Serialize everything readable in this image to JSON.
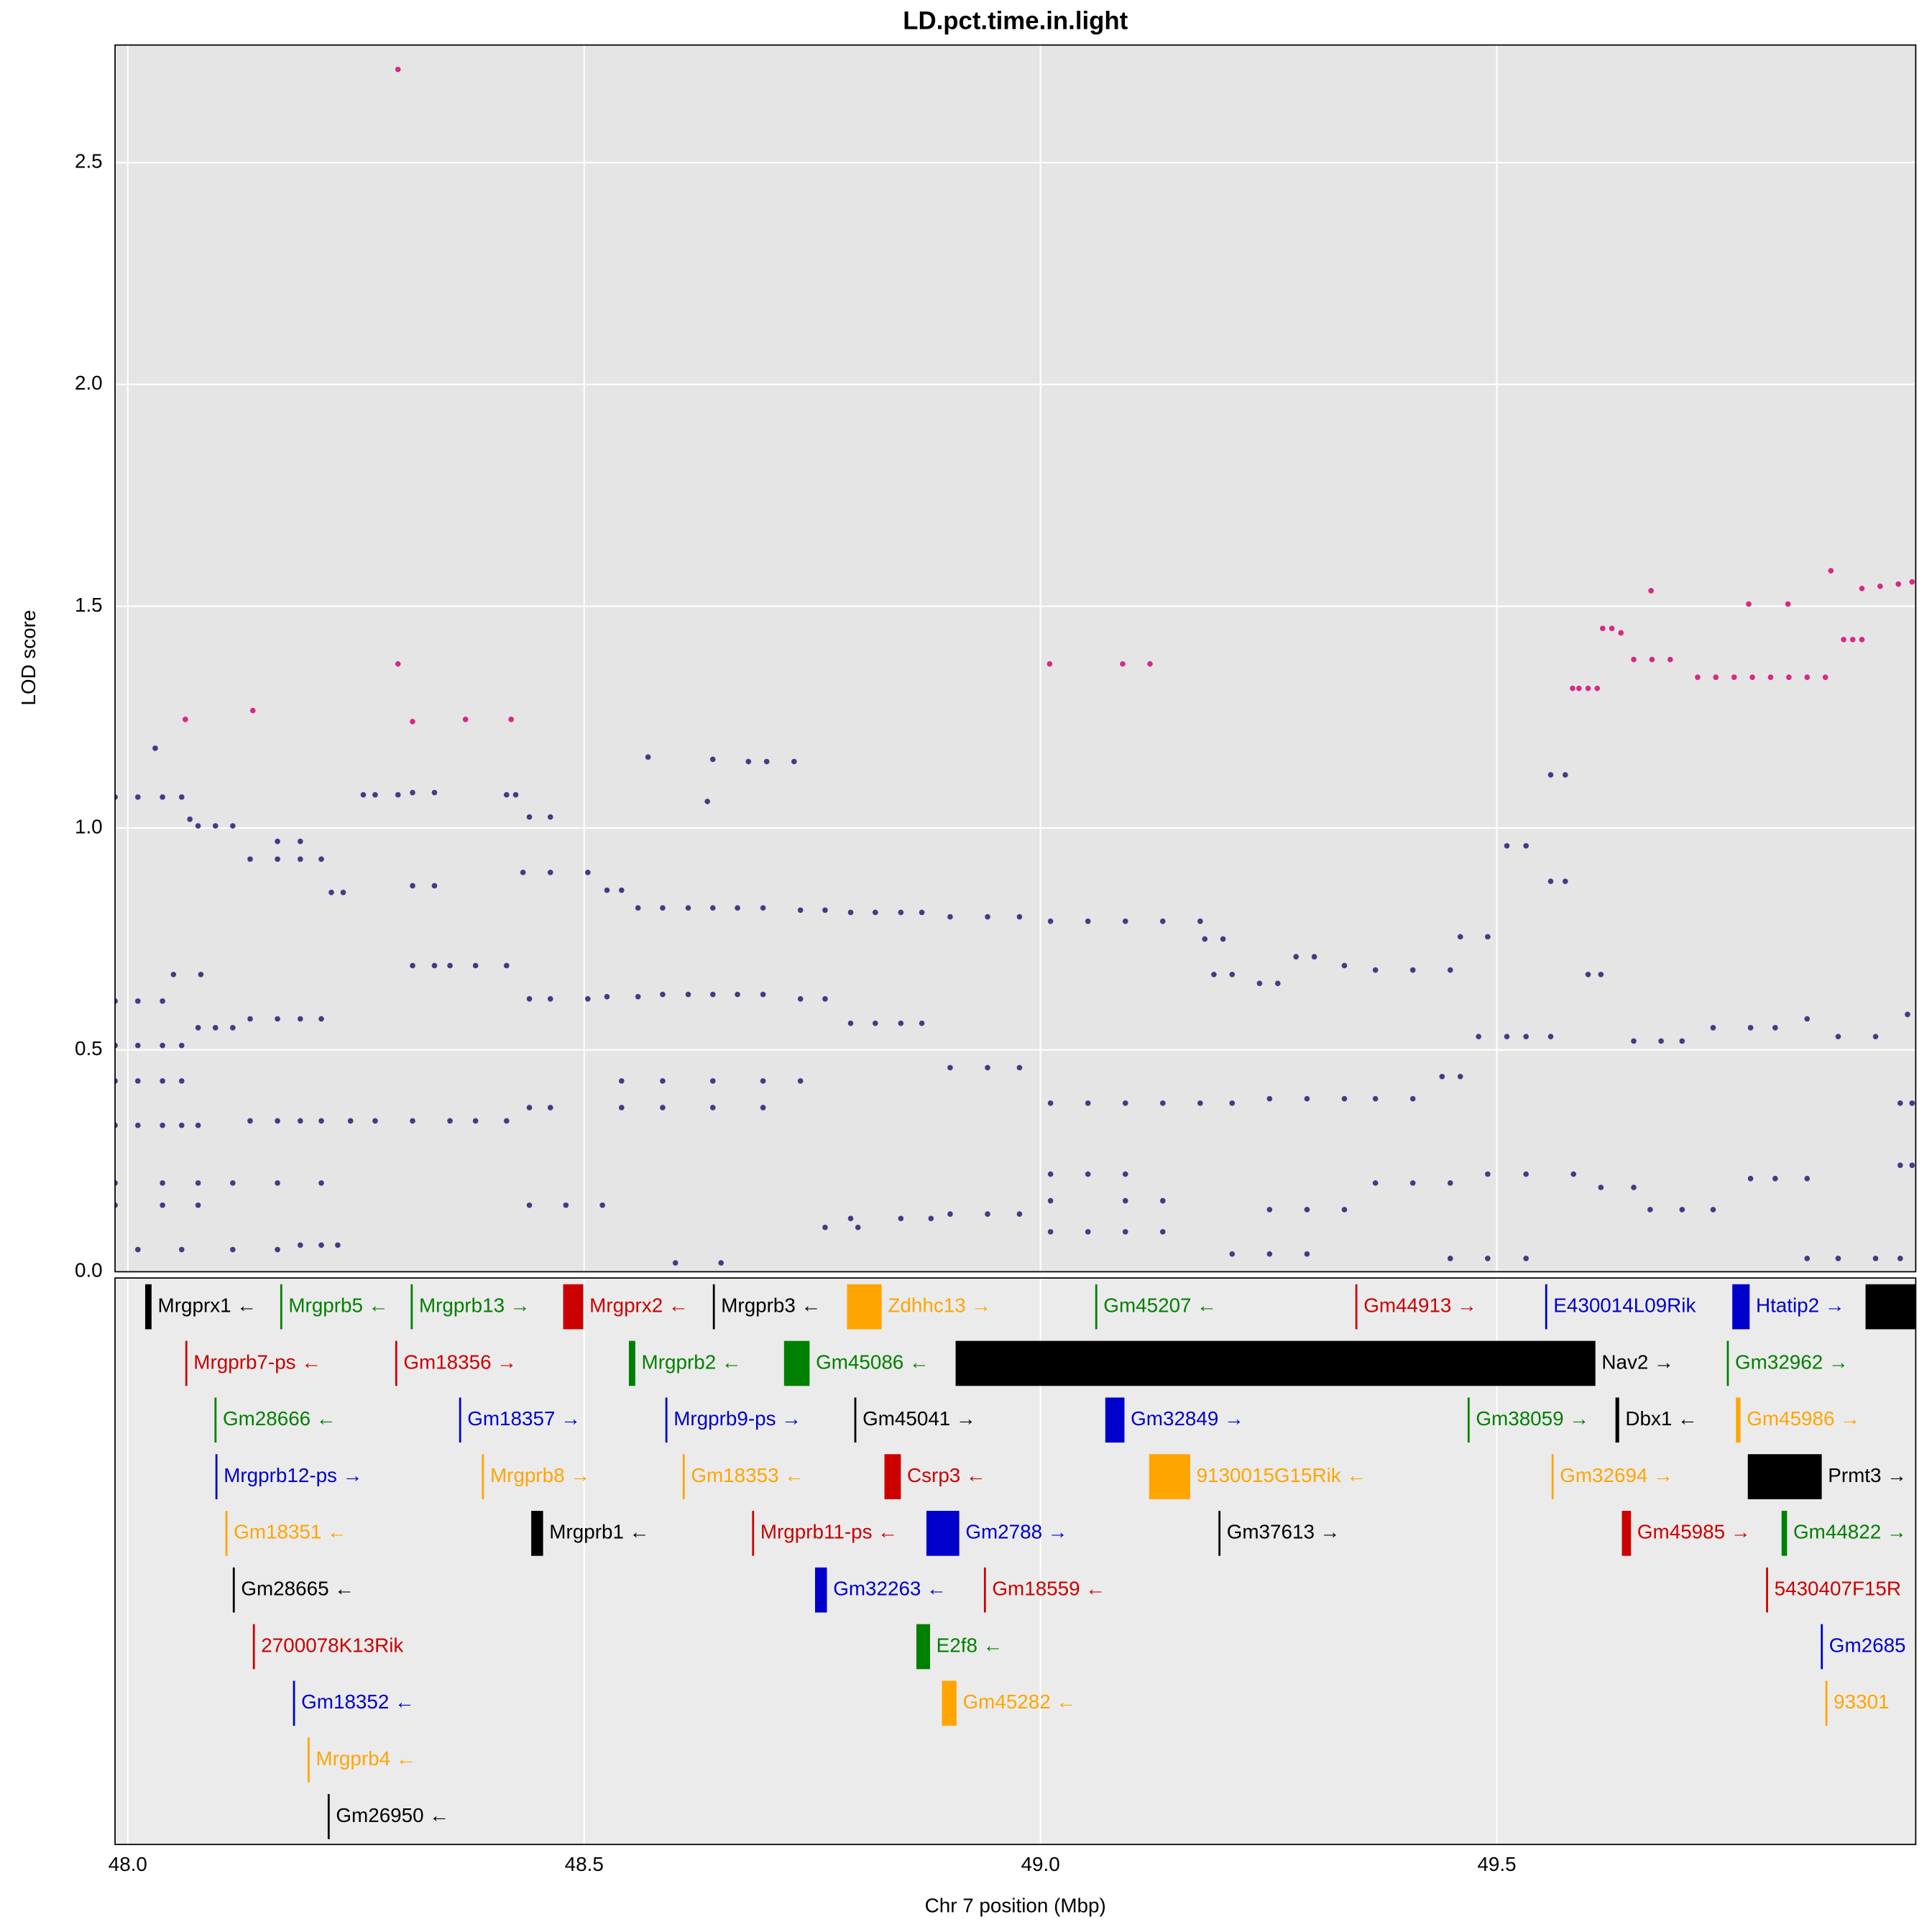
{
  "chart_data": {
    "type": "scatter",
    "title": "LD.pct.time.in.light",
    "xlabel": "Chr 7 position (Mbp)",
    "ylabel": "LOD score",
    "xlim": [
      47.986,
      49.959
    ],
    "ylim": [
      0,
      2.765
    ],
    "xticks": [
      {
        "value": 48,
        "label": "48.0"
      },
      48.5,
      {
        "value": 49,
        "label": "49.0"
      },
      49.5
    ],
    "yticks": [
      {
        "value": 0,
        "label": "0.0"
      },
      0.5,
      {
        "value": 1,
        "label": "1.0"
      },
      1.5,
      {
        "value": 2,
        "label": "2.0"
      },
      2.5
    ],
    "grid": true,
    "series": [
      {
        "color": "#463a84",
        "x": [
          47.986,
          48.011,
          48.038,
          48.059,
          48.068,
          48.077,
          48.096,
          48.115,
          48.134,
          48.164,
          48.189,
          48.212,
          48.164,
          48.189,
          48.223,
          48.236,
          48.258,
          48.271,
          48.296,
          48.312,
          48.336,
          48.312,
          48.336,
          48.312,
          48.336,
          48.353,
          48.381,
          48.415,
          48.415,
          48.425,
          48.44,
          48.463,
          48.433,
          48.463,
          48.504,
          48.525,
          48.541,
          48.559,
          48.586,
          48.614,
          48.641,
          48.668,
          48.696,
          48.737,
          48.764,
          48.792,
          48.819,
          48.847,
          48.87,
          48.901,
          48.942,
          48.977,
          49.011,
          49.052,
          49.093,
          49.134,
          49.175,
          49.18,
          49.2,
          49.19,
          49.21,
          49.24,
          49.26,
          49.28,
          49.3,
          49.333,
          49.367,
          49.408,
          49.449,
          49.46,
          49.49,
          49.511,
          49.532,
          49.559,
          49.575,
          49.559,
          49.575,
          49.6,
          49.614,
          48.68,
          48.7,
          48.73,
          48.641,
          48.03,
          48.57,
          48.635,
          47.986,
          48.011,
          48.038,
          47.986,
          48.011,
          48.038,
          48.059,
          48.077,
          48.096,
          48.115,
          48.134,
          48.164,
          48.189,
          48.212,
          48.05,
          48.08,
          48.44,
          48.463,
          48.504,
          48.525,
          48.559,
          48.586,
          48.614,
          48.641,
          48.668,
          48.696,
          48.737,
          48.764,
          48.792,
          48.819,
          48.847,
          48.87,
          48.901,
          48.942,
          48.977,
          49.011,
          49.052,
          49.093,
          49.134,
          49.175,
          49.21,
          49.251,
          49.292,
          49.333,
          49.367,
          49.408,
          49.44,
          49.46,
          49.48,
          49.511,
          49.532,
          49.559,
          49.65,
          49.68,
          49.703,
          49.737,
          49.778,
          49.805,
          49.84,
          49.874,
          49.915,
          49.95,
          47.986,
          48.011,
          48.038,
          48.059,
          47.986,
          48.011,
          48.038,
          48.059,
          48.077,
          48.134,
          48.164,
          48.189,
          48.212,
          48.244,
          48.271,
          48.312,
          48.353,
          48.381,
          48.415,
          48.44,
          48.463,
          48.541,
          48.586,
          48.641,
          48.696,
          48.541,
          48.586,
          48.641,
          48.696,
          48.737,
          47.986,
          48.038,
          48.077,
          48.115,
          48.164,
          48.212,
          47.986,
          48.038,
          48.077,
          48.011,
          48.059,
          48.115,
          48.164,
          48.189,
          48.212,
          48.23,
          48.44,
          48.48,
          48.52,
          48.792,
          48.847,
          48.88,
          48.901,
          48.942,
          48.977,
          49.011,
          49.052,
          49.093,
          49.011,
          49.093,
          49.134,
          49.011,
          49.052,
          49.093,
          49.134,
          49.21,
          49.251,
          49.292,
          49.251,
          49.292,
          49.333,
          49.367,
          49.408,
          49.449,
          49.449,
          49.49,
          49.532,
          49.49,
          49.532,
          49.584,
          49.614,
          49.65,
          49.668,
          49.703,
          49.737,
          49.778,
          49.805,
          49.84,
          49.84,
          49.874,
          49.915,
          49.942,
          49.942,
          49.955,
          49.942,
          49.955,
          48.6,
          48.65,
          48.764,
          48.8
        ],
        "values": [
          1.07,
          1.07,
          1.07,
          1.07,
          1.02,
          1.005,
          1.005,
          1.005,
          0.93,
          0.93,
          0.93,
          0.93,
          0.97,
          0.97,
          0.855,
          0.855,
          1.075,
          1.075,
          1.075,
          1.08,
          1.08,
          0.87,
          0.87,
          0.69,
          0.69,
          0.69,
          0.69,
          0.69,
          1.075,
          1.075,
          1.025,
          1.025,
          0.9,
          0.9,
          0.9,
          0.86,
          0.86,
          0.82,
          0.82,
          0.82,
          0.82,
          0.82,
          0.82,
          0.815,
          0.815,
          0.81,
          0.81,
          0.81,
          0.81,
          0.8,
          0.8,
          0.8,
          0.79,
          0.79,
          0.79,
          0.79,
          0.79,
          0.75,
          0.75,
          0.67,
          0.67,
          0.65,
          0.65,
          0.71,
          0.71,
          0.69,
          0.68,
          0.68,
          0.68,
          0.755,
          0.755,
          0.96,
          0.96,
          1.12,
          1.12,
          0.88,
          0.88,
          0.67,
          0.67,
          1.15,
          1.15,
          1.15,
          1.155,
          1.18,
          1.16,
          1.06,
          0.61,
          0.61,
          0.61,
          0.51,
          0.51,
          0.51,
          0.51,
          0.55,
          0.55,
          0.55,
          0.57,
          0.57,
          0.57,
          0.57,
          0.67,
          0.67,
          0.615,
          0.615,
          0.615,
          0.62,
          0.62,
          0.625,
          0.625,
          0.625,
          0.625,
          0.625,
          0.615,
          0.615,
          0.56,
          0.56,
          0.56,
          0.56,
          0.46,
          0.46,
          0.46,
          0.38,
          0.38,
          0.38,
          0.38,
          0.38,
          0.38,
          0.39,
          0.39,
          0.39,
          0.39,
          0.39,
          0.44,
          0.44,
          0.53,
          0.53,
          0.53,
          0.53,
          0.52,
          0.52,
          0.52,
          0.55,
          0.55,
          0.55,
          0.57,
          0.53,
          0.53,
          0.58,
          0.43,
          0.43,
          0.43,
          0.43,
          0.33,
          0.33,
          0.33,
          0.33,
          0.33,
          0.34,
          0.34,
          0.34,
          0.34,
          0.34,
          0.34,
          0.34,
          0.34,
          0.34,
          0.34,
          0.37,
          0.37,
          0.37,
          0.37,
          0.37,
          0.37,
          0.43,
          0.43,
          0.43,
          0.43,
          0.43,
          0.2,
          0.2,
          0.2,
          0.2,
          0.2,
          0.2,
          0.15,
          0.15,
          0.15,
          0.05,
          0.05,
          0.05,
          0.05,
          0.06,
          0.06,
          0.06,
          0.15,
          0.15,
          0.15,
          0.12,
          0.12,
          0.12,
          0.13,
          0.13,
          0.13,
          0.22,
          0.22,
          0.22,
          0.16,
          0.16,
          0.16,
          0.09,
          0.09,
          0.09,
          0.09,
          0.04,
          0.04,
          0.04,
          0.14,
          0.14,
          0.14,
          0.2,
          0.2,
          0.2,
          0.03,
          0.03,
          0.03,
          0.22,
          0.22,
          0.22,
          0.19,
          0.19,
          0.14,
          0.14,
          0.14,
          0.21,
          0.21,
          0.21,
          0.03,
          0.03,
          0.03,
          0.03,
          0.38,
          0.38,
          0.24,
          0.24,
          0.02,
          0.02,
          0.1,
          0.1
        ]
      },
      {
        "color": "#d6298a",
        "x": [
          48.296,
          48.296,
          48.312,
          48.137,
          48.063,
          48.37,
          48.42,
          49.01,
          49.09,
          49.12,
          49.583,
          49.59,
          49.6,
          49.61,
          49.616,
          49.626,
          49.636,
          49.65,
          49.67,
          49.69,
          49.669,
          49.72,
          49.74,
          49.76,
          49.78,
          49.8,
          49.82,
          49.84,
          49.86,
          49.776,
          49.819,
          49.88,
          49.89,
          49.9,
          49.866,
          49.9,
          49.92,
          49.94,
          49.955
        ],
        "values": [
          2.71,
          1.37,
          1.24,
          1.265,
          1.245,
          1.245,
          1.245,
          1.37,
          1.37,
          1.37,
          1.315,
          1.315,
          1.315,
          1.315,
          1.45,
          1.45,
          1.44,
          1.38,
          1.38,
          1.38,
          1.535,
          1.34,
          1.34,
          1.34,
          1.34,
          1.34,
          1.34,
          1.34,
          1.34,
          1.505,
          1.505,
          1.425,
          1.425,
          1.425,
          1.58,
          1.54,
          1.545,
          1.55,
          1.555
        ]
      }
    ],
    "genes": [
      [
        {
          "name": "Mrgprx1 ←",
          "start": 48.019,
          "end": 48.026,
          "color": "#000000"
        },
        {
          "name": "Mrgprb5 ←",
          "start": 48.167,
          "end": 48.167,
          "color": "#008000"
        },
        {
          "name": "Mrgprb13 →",
          "start": 48.31,
          "end": 48.31,
          "color": "#008000"
        },
        {
          "name": "Mrgprx2 ←",
          "start": 48.477,
          "end": 48.499,
          "color": "#cc0000"
        },
        {
          "name": "Mrgprb3 ←",
          "start": 48.641,
          "end": 48.641,
          "color": "#000000"
        },
        {
          "name": "Zdhhc13 →",
          "start": 48.788,
          "end": 48.826,
          "color": "#ffa500"
        },
        {
          "name": "Gm45207 ←",
          "start": 49.06,
          "end": 49.06,
          "color": "#008000"
        },
        {
          "name": "Gm44913 →",
          "start": 49.345,
          "end": 49.345,
          "color": "#cc0000"
        },
        {
          "name": "E430014L09Rik",
          "start": 49.553,
          "end": 49.553,
          "color": "#0000cc"
        },
        {
          "name": "Htatip2 →",
          "start": 49.758,
          "end": 49.777,
          "color": "#0000cc"
        },
        {
          "name": null,
          "start": 49.904,
          "end": 49.99,
          "color": "#000000"
        }
      ],
      [
        {
          "name": "Mrgprb7-ps ←",
          "start": 48.063,
          "end": 48.063,
          "color": "#cc0000"
        },
        {
          "name": "Gm18356 →",
          "start": 48.293,
          "end": 48.293,
          "color": "#cc0000"
        },
        {
          "name": "Mrgprb2 ←",
          "start": 48.549,
          "end": 48.556,
          "color": "#008000"
        },
        {
          "name": "Gm45086 ←",
          "start": 48.719,
          "end": 48.747,
          "color": "#008000"
        },
        {
          "name": "Nav2 →",
          "start": 48.907,
          "end": 49.608,
          "color": "#000000"
        },
        {
          "name": "Gm32962 →",
          "start": 49.752,
          "end": 49.752,
          "color": "#008000"
        }
      ],
      [
        {
          "name": "Gm28666 ←",
          "start": 48.095,
          "end": 48.095,
          "color": "#008000"
        },
        {
          "name": "Gm18357 →",
          "start": 48.363,
          "end": 48.363,
          "color": "#0000cc"
        },
        {
          "name": "Mrgprb9-ps →",
          "start": 48.589,
          "end": 48.589,
          "color": "#0000cc"
        },
        {
          "name": "Gm45041 →",
          "start": 48.796,
          "end": 48.796,
          "color": "#000000"
        },
        {
          "name": "Gm32849 →",
          "start": 49.071,
          "end": 49.092,
          "color": "#0000cc"
        },
        {
          "name": "Gm38059 →",
          "start": 49.468,
          "end": 49.468,
          "color": "#008000"
        },
        {
          "name": "Dbx1 ←",
          "start": 49.63,
          "end": 49.634,
          "color": "#000000"
        },
        {
          "name": "Gm45986 →",
          "start": 49.762,
          "end": 49.767,
          "color": "#ffa500"
        }
      ],
      [
        {
          "name": "Mrgprb12-ps →",
          "start": 48.096,
          "end": 48.096,
          "color": "#0000cc"
        },
        {
          "name": "Mrgprb8 →",
          "start": 48.388,
          "end": 48.388,
          "color": "#ffa500"
        },
        {
          "name": "Gm18353 ←",
          "start": 48.608,
          "end": 48.608,
          "color": "#ffa500"
        },
        {
          "name": "Csrp3 ←",
          "start": 48.829,
          "end": 48.847,
          "color": "#cc0000"
        },
        {
          "name": "9130015G15Rik ←",
          "start": 49.119,
          "end": 49.164,
          "color": "#ffa500"
        },
        {
          "name": "Gm32694 →",
          "start": 49.56,
          "end": 49.56,
          "color": "#ffa500"
        },
        {
          "name": "Prmt3 →",
          "start": 49.775,
          "end": 49.856,
          "color": "#000000"
        }
      ],
      [
        {
          "name": "Gm18351 ←",
          "start": 48.107,
          "end": 48.107,
          "color": "#ffa500"
        },
        {
          "name": "Mrgprb1 ←",
          "start": 48.442,
          "end": 48.455,
          "color": "#000000"
        },
        {
          "name": "Mrgprb11-ps ←",
          "start": 48.684,
          "end": 48.684,
          "color": "#cc0000"
        },
        {
          "name": "Gm2788 →",
          "start": 48.875,
          "end": 48.911,
          "color": "#0000cc"
        },
        {
          "name": "Gm37613 →",
          "start": 49.195,
          "end": 49.195,
          "color": "#000000"
        },
        {
          "name": "Gm45985 →",
          "start": 49.637,
          "end": 49.647,
          "color": "#cc0000"
        },
        {
          "name": "Gm44822 →",
          "start": 49.812,
          "end": 49.818,
          "color": "#008000"
        }
      ],
      [
        {
          "name": "Gm28665 ←",
          "start": 48.115,
          "end": 48.115,
          "color": "#000000"
        },
        {
          "name": "Gm32263 ←",
          "start": 48.753,
          "end": 48.766,
          "color": "#0000cc"
        },
        {
          "name": "Gm18559 ←",
          "start": 48.938,
          "end": 48.938,
          "color": "#cc0000"
        },
        {
          "name": "5430407F15R",
          "start": 49.795,
          "end": 49.795,
          "color": "#cc0000"
        }
      ],
      [
        {
          "name": "2700078K13Rik",
          "start": 48.137,
          "end": 48.137,
          "color": "#cc0000"
        },
        {
          "name": "E2f8 ←",
          "start": 48.864,
          "end": 48.879,
          "color": "#008000"
        },
        {
          "name": "Gm2685",
          "start": 49.855,
          "end": 49.855,
          "color": "#0000cc"
        }
      ],
      [
        {
          "name": "Gm18352 ←",
          "start": 48.181,
          "end": 48.181,
          "color": "#0000cc"
        },
        {
          "name": "Gm45282 ←",
          "start": 48.892,
          "end": 48.908,
          "color": "#ffa500"
        },
        {
          "name": "93301",
          "start": 49.86,
          "end": 49.86,
          "color": "#ffa500"
        }
      ],
      [
        {
          "name": "Mrgprb4 ←",
          "start": 48.197,
          "end": 48.197,
          "color": "#ffa500"
        }
      ],
      [
        {
          "name": "Gm26950 ←",
          "start": 48.219,
          "end": 48.219,
          "color": "#000000"
        }
      ]
    ]
  }
}
